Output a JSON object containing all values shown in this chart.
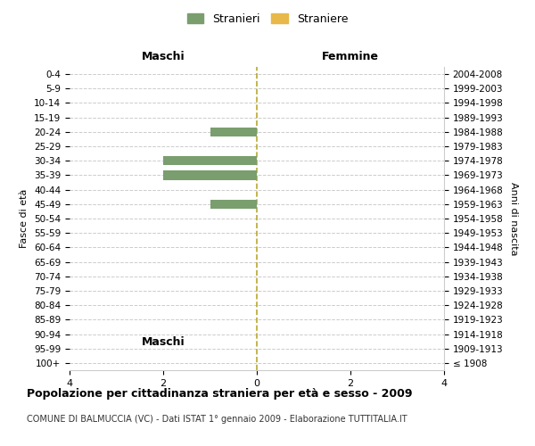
{
  "age_groups": [
    "100+",
    "95-99",
    "90-94",
    "85-89",
    "80-84",
    "75-79",
    "70-74",
    "65-69",
    "60-64",
    "55-59",
    "50-54",
    "45-49",
    "40-44",
    "35-39",
    "30-34",
    "25-29",
    "20-24",
    "15-19",
    "10-14",
    "5-9",
    "0-4"
  ],
  "birth_years": [
    "≤ 1908",
    "1909-1913",
    "1914-1918",
    "1919-1923",
    "1924-1928",
    "1929-1933",
    "1934-1938",
    "1939-1943",
    "1944-1948",
    "1949-1953",
    "1954-1958",
    "1959-1963",
    "1964-1968",
    "1969-1973",
    "1974-1978",
    "1979-1983",
    "1984-1988",
    "1989-1993",
    "1994-1998",
    "1999-2003",
    "2004-2008"
  ],
  "males": [
    0,
    0,
    0,
    0,
    0,
    0,
    0,
    0,
    0,
    0,
    0,
    1,
    0,
    2,
    2,
    0,
    1,
    0,
    0,
    0,
    0
  ],
  "females": [
    0,
    0,
    0,
    0,
    0,
    0,
    0,
    0,
    0,
    0,
    0,
    0,
    0,
    0,
    0,
    0,
    0,
    0,
    0,
    0,
    0
  ],
  "male_color": "#7a9e6e",
  "female_color": "#e8b84b",
  "male_label": "Stranieri",
  "female_label": "Straniere",
  "title": "Popolazione per cittadinanza straniera per età e sesso - 2009",
  "subtitle": "COMUNE DI BALMUCCIA (VC) - Dati ISTAT 1° gennaio 2009 - Elaborazione TUTTITALIA.IT",
  "ylabel_left": "Fasce di età",
  "ylabel_right": "Anni di nascita",
  "xlabel_maschi": "Maschi",
  "xlabel_femmine": "Femmine",
  "xlim": 4,
  "background_color": "#ffffff",
  "grid_color": "#cccccc"
}
